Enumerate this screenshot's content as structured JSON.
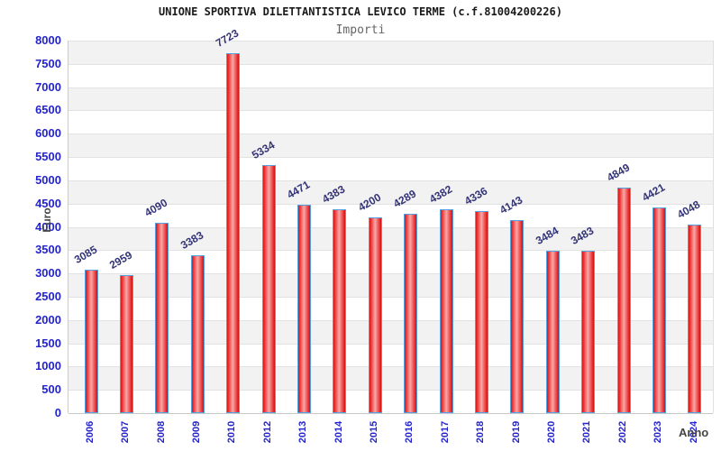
{
  "header": {
    "title": "UNIONE SPORTIVA DILETTANTISTICA LEVICO TERME (c.f.81004200226)",
    "subtitle": "Importi"
  },
  "chart_data": {
    "type": "bar",
    "title": "UNIONE SPORTIVA DILETTANTISTICA LEVICO TERME (c.f.81004200226)",
    "subtitle": "Importi",
    "xlabel": "Anno",
    "ylabel": "Euro",
    "categories": [
      "2006",
      "2007",
      "2008",
      "2009",
      "2010",
      "2012",
      "2013",
      "2014",
      "2015",
      "2016",
      "2017",
      "2018",
      "2019",
      "2020",
      "2021",
      "2022",
      "2023",
      "2024"
    ],
    "values": [
      3085,
      2959,
      4090,
      3383,
      7723,
      5334,
      4471,
      4383,
      4200,
      4289,
      4382,
      4336,
      4143,
      3484,
      3483,
      4849,
      4421,
      4048
    ],
    "ylim": [
      0,
      8000
    ],
    "ytick_step": 500,
    "grid": "horizontal, alternating shaded bands every 500",
    "legend_position": "none",
    "colors": {
      "bar_fill_edge": "#d81616",
      "bar_fill_center": "#f7a8a8",
      "bar_border": "#55a0e0",
      "tick_label": "#2424cc",
      "value_label": "#333377",
      "band_shade": "#f2f2f2",
      "gridline": "#e2e2e2",
      "title": "#1a1a1a",
      "subtitle": "#666666",
      "axis_title": "#444444"
    }
  }
}
